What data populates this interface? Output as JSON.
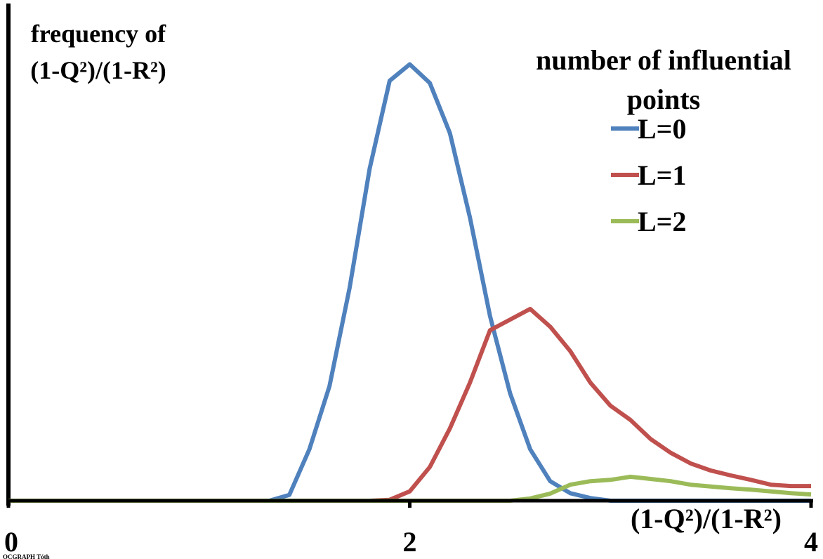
{
  "chart_data": {
    "type": "line",
    "y_label": [
      "frequency of",
      "(1-Q²)/(1-R²)"
    ],
    "x_label": "(1-Q²)/(1-R²)",
    "legend_title": "number of influential points",
    "credit": "OCGRAPH Tóth",
    "x": [
      0,
      0.1,
      0.2,
      0.3,
      0.4,
      0.5,
      0.6,
      0.7,
      0.8,
      0.9,
      1.0,
      1.1,
      1.2,
      1.3,
      1.4,
      1.5,
      1.6,
      1.7,
      1.8,
      1.9,
      2.0,
      2.1,
      2.2,
      2.3,
      2.4,
      2.5,
      2.6,
      2.7,
      2.8,
      2.9,
      3.0,
      3.1,
      3.2,
      3.3,
      3.4,
      3.5,
      3.6,
      3.7,
      3.8,
      3.9,
      4.0
    ],
    "series": [
      {
        "name": "L=0",
        "color": "#4f81bd",
        "values": [
          0,
          0,
          0,
          0,
          0,
          0,
          0,
          0,
          0,
          0,
          0,
          0,
          0,
          0,
          1.3,
          11.6,
          25.8,
          47.9,
          74.8,
          94.6,
          98.3,
          94.1,
          82.8,
          63.8,
          41.6,
          24.2,
          11.6,
          4.4,
          1.7,
          0.6,
          0,
          0,
          0,
          0,
          0,
          0,
          0,
          0,
          0,
          0,
          0
        ]
      },
      {
        "name": "L=1",
        "color": "#c0504d",
        "values": [
          0,
          0,
          0,
          0,
          0,
          0,
          0,
          0,
          0,
          0,
          0,
          0,
          0,
          0,
          0,
          0,
          0,
          0,
          0,
          0.2,
          2.1,
          7.6,
          16.3,
          26.6,
          38.4,
          40.8,
          43.2,
          39.2,
          33.7,
          26.6,
          21.4,
          18.2,
          13.9,
          10.8,
          8.4,
          6.8,
          5.7,
          4.7,
          3.6,
          3.3,
          3.3
        ]
      },
      {
        "name": "L=2",
        "color": "#9bbb59",
        "values": [
          0,
          0,
          0,
          0,
          0,
          0,
          0,
          0,
          0,
          0,
          0,
          0,
          0,
          0,
          0,
          0,
          0,
          0,
          0,
          0,
          0,
          0,
          0,
          0,
          0,
          0,
          0.5,
          1.6,
          3.6,
          4.4,
          4.7,
          5.4,
          4.9,
          4.4,
          3.6,
          3.2,
          2.8,
          2.5,
          2.1,
          1.7,
          1.4
        ]
      }
    ],
    "xlim": [
      0,
      4
    ],
    "xticks": [
      0,
      2,
      4
    ],
    "ylim": [
      0,
      112
    ]
  }
}
